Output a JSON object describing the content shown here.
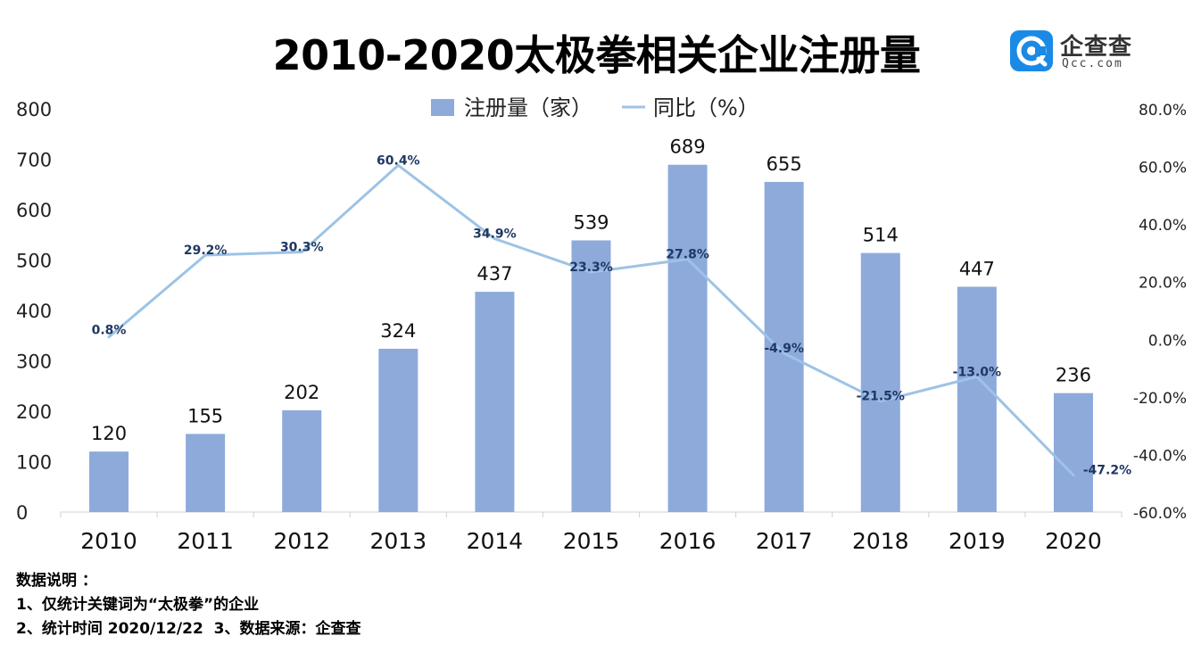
{
  "title": "2010-2020太极拳相关企业注册量",
  "logo": {
    "cn": "企查查",
    "en": "Qcc.com",
    "color": "#1a8ae6"
  },
  "notes": [
    "数据说明 ：",
    "1、仅统计关键词为“太极拳”的企业",
    "2、统计时间 2020/12/22  3、数据来源：企查查"
  ],
  "chart_data": {
    "type": "bar",
    "categories": [
      "2010",
      "2011",
      "2012",
      "2013",
      "2014",
      "2015",
      "2016",
      "2017",
      "2018",
      "2019",
      "2020"
    ],
    "series": [
      {
        "name": "注册量（家）",
        "type": "bar",
        "axis": "left",
        "color": "#8eaadb",
        "values": [
          120,
          155,
          202,
          324,
          437,
          539,
          689,
          655,
          514,
          447,
          236
        ],
        "labels": [
          "120",
          "155",
          "202",
          "324",
          "437",
          "539",
          "689",
          "655",
          "514",
          "447",
          "236"
        ]
      },
      {
        "name": "同比（%）",
        "type": "line",
        "axis": "right",
        "color": "#9dc3e6",
        "values": [
          0.8,
          29.2,
          30.3,
          60.4,
          34.9,
          23.3,
          27.8,
          -4.9,
          -21.5,
          -13.0,
          -47.2
        ],
        "labels": [
          "0.8%",
          "29.2%",
          "30.3%",
          "60.4%",
          "34.9%",
          "23.3%",
          "27.8%",
          "-4.9%",
          "-21.5%",
          "-13.0%",
          "-47.2%"
        ]
      }
    ],
    "y_left": {
      "min": 0,
      "max": 800,
      "ticks": [
        "0",
        "100",
        "200",
        "300",
        "400",
        "500",
        "600",
        "700",
        "800"
      ]
    },
    "y_right": {
      "min": -60,
      "max": 80,
      "ticks": [
        "-60.0%",
        "-40.0%",
        "-20.0%",
        "0.0%",
        "20.0%",
        "40.0%",
        "60.0%",
        "80.0%"
      ]
    },
    "legend": "top",
    "grid": false,
    "line_label_color": "#1f3864"
  }
}
